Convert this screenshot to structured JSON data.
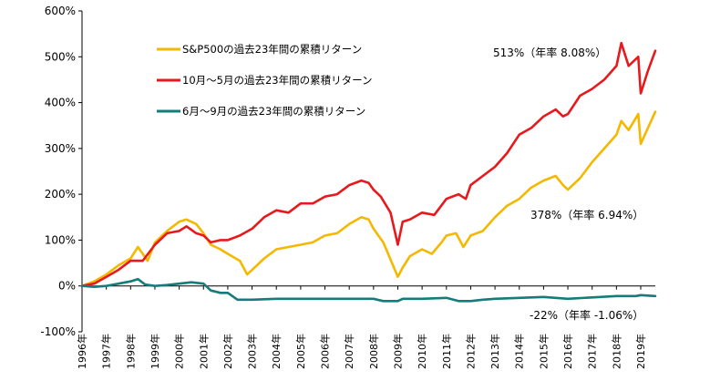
{
  "chart_data": {
    "type": "line",
    "x": [
      "1996年",
      "1997年",
      "1998年",
      "1999年",
      "2000年",
      "2001年",
      "2002年",
      "2003年",
      "2004年",
      "2005年",
      "2006年",
      "2007年",
      "2008年",
      "2009年",
      "2010年",
      "2011年",
      "2012年",
      "2013年",
      "2014年",
      "2015年",
      "2016年",
      "2017年",
      "2018年",
      "2019年"
    ],
    "ylim": [
      -100,
      600
    ],
    "yticks": [
      -100,
      0,
      100,
      200,
      300,
      400,
      500,
      600
    ],
    "ytick_labels": [
      "-100%",
      "0%",
      "100%",
      "200%",
      "300%",
      "400%",
      "500%",
      "600%"
    ],
    "grid": false,
    "legend_position": "top-left",
    "series": [
      {
        "name": "S&P500の過去23年間の累積リターン",
        "color": "#f5b800",
        "points": [
          [
            1996.0,
            0
          ],
          [
            1996.5,
            10
          ],
          [
            1997.0,
            25
          ],
          [
            1997.5,
            45
          ],
          [
            1998.0,
            60
          ],
          [
            1998.3,
            85
          ],
          [
            1998.7,
            55
          ],
          [
            1999.0,
            95
          ],
          [
            1999.5,
            120
          ],
          [
            2000.0,
            140
          ],
          [
            2000.3,
            145
          ],
          [
            2000.7,
            135
          ],
          [
            2001.0,
            115
          ],
          [
            2001.3,
            90
          ],
          [
            2001.7,
            80
          ],
          [
            2002.0,
            70
          ],
          [
            2002.5,
            55
          ],
          [
            2002.8,
            25
          ],
          [
            2003.0,
            35
          ],
          [
            2003.5,
            60
          ],
          [
            2004.0,
            80
          ],
          [
            2004.5,
            85
          ],
          [
            2005.0,
            90
          ],
          [
            2005.5,
            95
          ],
          [
            2006.0,
            110
          ],
          [
            2006.5,
            115
          ],
          [
            2007.0,
            135
          ],
          [
            2007.5,
            150
          ],
          [
            2007.8,
            145
          ],
          [
            2008.0,
            125
          ],
          [
            2008.4,
            95
          ],
          [
            2008.8,
            45
          ],
          [
            2009.0,
            20
          ],
          [
            2009.2,
            40
          ],
          [
            2009.5,
            65
          ],
          [
            2010.0,
            80
          ],
          [
            2010.4,
            70
          ],
          [
            2010.8,
            95
          ],
          [
            2011.0,
            110
          ],
          [
            2011.4,
            115
          ],
          [
            2011.7,
            85
          ],
          [
            2012.0,
            110
          ],
          [
            2012.5,
            120
          ],
          [
            2013.0,
            150
          ],
          [
            2013.5,
            175
          ],
          [
            2014.0,
            190
          ],
          [
            2014.5,
            215
          ],
          [
            2015.0,
            230
          ],
          [
            2015.5,
            240
          ],
          [
            2015.8,
            220
          ],
          [
            2016.0,
            210
          ],
          [
            2016.5,
            235
          ],
          [
            2017.0,
            270
          ],
          [
            2017.5,
            300
          ],
          [
            2018.0,
            330
          ],
          [
            2018.2,
            360
          ],
          [
            2018.5,
            340
          ],
          [
            2018.9,
            375
          ],
          [
            2019.0,
            310
          ],
          [
            2019.3,
            345
          ],
          [
            2019.6,
            380
          ]
        ]
      },
      {
        "name": "10月～5月の過去23年間の累積リターン",
        "color": "#e8191c",
        "points": [
          [
            1996.0,
            0
          ],
          [
            1996.5,
            5
          ],
          [
            1997.0,
            20
          ],
          [
            1997.5,
            35
          ],
          [
            1998.0,
            55
          ],
          [
            1998.5,
            55
          ],
          [
            1999.0,
            90
          ],
          [
            1999.5,
            115
          ],
          [
            2000.0,
            120
          ],
          [
            2000.3,
            130
          ],
          [
            2000.7,
            115
          ],
          [
            2001.0,
            110
          ],
          [
            2001.3,
            95
          ],
          [
            2001.7,
            100
          ],
          [
            2002.0,
            100
          ],
          [
            2002.5,
            110
          ],
          [
            2003.0,
            125
          ],
          [
            2003.5,
            150
          ],
          [
            2004.0,
            165
          ],
          [
            2004.5,
            160
          ],
          [
            2005.0,
            180
          ],
          [
            2005.5,
            180
          ],
          [
            2006.0,
            195
          ],
          [
            2006.5,
            200
          ],
          [
            2007.0,
            220
          ],
          [
            2007.5,
            230
          ],
          [
            2007.8,
            225
          ],
          [
            2008.0,
            210
          ],
          [
            2008.3,
            195
          ],
          [
            2008.7,
            160
          ],
          [
            2009.0,
            90
          ],
          [
            2009.2,
            140
          ],
          [
            2009.5,
            145
          ],
          [
            2010.0,
            160
          ],
          [
            2010.5,
            155
          ],
          [
            2011.0,
            190
          ],
          [
            2011.5,
            200
          ],
          [
            2011.8,
            190
          ],
          [
            2012.0,
            220
          ],
          [
            2012.5,
            240
          ],
          [
            2013.0,
            260
          ],
          [
            2013.5,
            290
          ],
          [
            2014.0,
            330
          ],
          [
            2014.5,
            345
          ],
          [
            2015.0,
            370
          ],
          [
            2015.5,
            385
          ],
          [
            2015.8,
            370
          ],
          [
            2016.0,
            375
          ],
          [
            2016.5,
            415
          ],
          [
            2017.0,
            430
          ],
          [
            2017.5,
            450
          ],
          [
            2018.0,
            480
          ],
          [
            2018.2,
            530
          ],
          [
            2018.5,
            480
          ],
          [
            2018.9,
            500
          ],
          [
            2019.0,
            420
          ],
          [
            2019.3,
            470
          ],
          [
            2019.6,
            513
          ]
        ]
      },
      {
        "name": "6月～9月の過去23年間の累積リターン",
        "color": "#157c7a",
        "points": [
          [
            1996.0,
            0
          ],
          [
            1996.5,
            -2
          ],
          [
            1997.0,
            0
          ],
          [
            1997.5,
            5
          ],
          [
            1998.0,
            10
          ],
          [
            1998.3,
            15
          ],
          [
            1998.6,
            3
          ],
          [
            1999.0,
            0
          ],
          [
            1999.5,
            2
          ],
          [
            2000.0,
            5
          ],
          [
            2000.5,
            8
          ],
          [
            2001.0,
            5
          ],
          [
            2001.3,
            -10
          ],
          [
            2001.7,
            -15
          ],
          [
            2002.0,
            -15
          ],
          [
            2002.4,
            -30
          ],
          [
            2003.0,
            -30
          ],
          [
            2004.0,
            -28
          ],
          [
            2005.0,
            -28
          ],
          [
            2006.0,
            -28
          ],
          [
            2007.0,
            -28
          ],
          [
            2008.0,
            -28
          ],
          [
            2008.4,
            -33
          ],
          [
            2009.0,
            -33
          ],
          [
            2009.2,
            -28
          ],
          [
            2010.0,
            -28
          ],
          [
            2011.0,
            -26
          ],
          [
            2011.5,
            -33
          ],
          [
            2012.0,
            -33
          ],
          [
            2012.5,
            -30
          ],
          [
            2013.0,
            -28
          ],
          [
            2014.0,
            -26
          ],
          [
            2015.0,
            -24
          ],
          [
            2016.0,
            -28
          ],
          [
            2017.0,
            -25
          ],
          [
            2018.0,
            -22
          ],
          [
            2018.8,
            -22
          ],
          [
            2019.0,
            -20
          ],
          [
            2019.6,
            -22
          ]
        ]
      }
    ],
    "annotations": [
      {
        "text": "513%（年率 8.08%）",
        "series": 1,
        "x": 2019.6,
        "y": 513
      },
      {
        "text": "378%（年率 6.94%）",
        "series": 0,
        "x": 2019.6,
        "y": 378
      },
      {
        "text": "-22%（年率 -1.06%）",
        "series": 2,
        "x": 2019.6,
        "y": -22
      }
    ]
  }
}
